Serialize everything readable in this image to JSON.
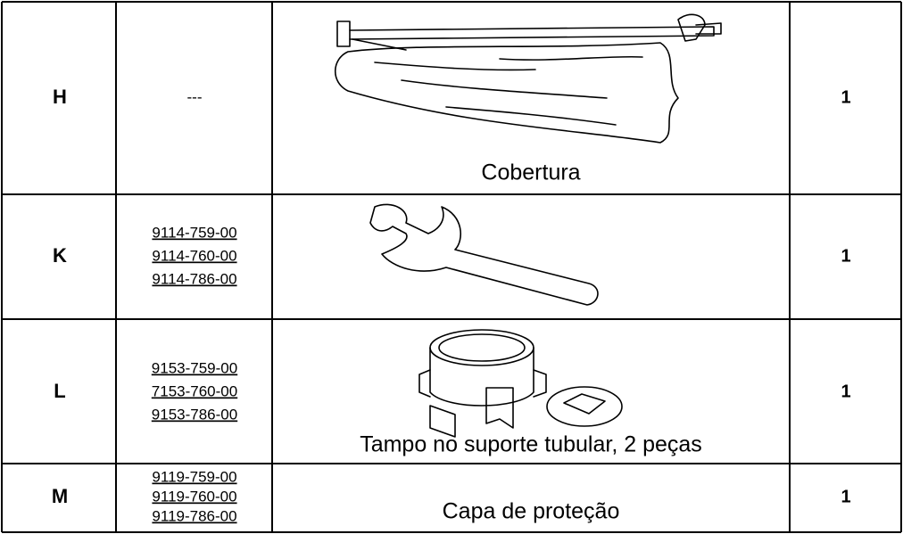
{
  "table": {
    "rows": [
      {
        "item": "H",
        "no_part_number": "---",
        "caption": "Cobertura",
        "quantity": "1"
      },
      {
        "item": "K",
        "part_numbers": [
          "9114-759-00",
          "9114-760-00",
          "9114-786-00"
        ],
        "quantity": "1"
      },
      {
        "item": "L",
        "part_numbers": [
          "9153-759-00",
          "7153-760-00",
          "9153-786-00"
        ],
        "caption": "Tampo no suporte tubular, 2 peças",
        "quantity": "1"
      },
      {
        "item": "M",
        "part_numbers": [
          "9119-759-00",
          "9119-760-00",
          "9119-786-00"
        ],
        "caption": "Capa de proteção",
        "quantity": "1"
      }
    ]
  }
}
